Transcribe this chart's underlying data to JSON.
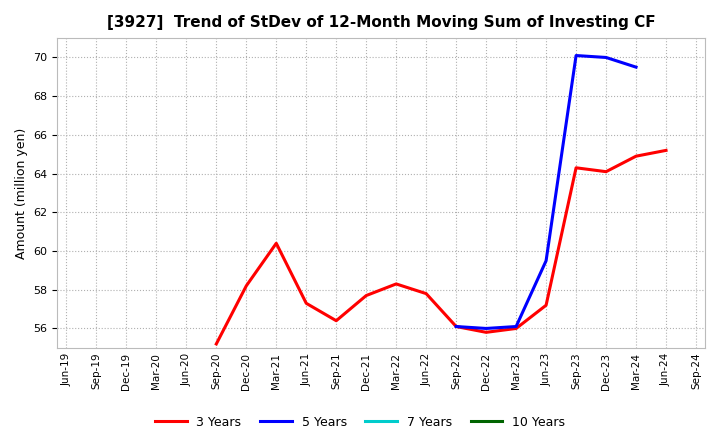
{
  "title": "[3927]  Trend of StDev of 12-Month Moving Sum of Investing CF",
  "ylabel": "Amount (million yen)",
  "background_color": "#ffffff",
  "grid_color": "#b0b0b0",
  "ylim": [
    55.0,
    71.0
  ],
  "yticks": [
    56,
    58,
    60,
    62,
    64,
    66,
    68,
    70
  ],
  "xtick_labels": [
    "Jun-19",
    "Sep-19",
    "Dec-19",
    "Mar-20",
    "Jun-20",
    "Sep-20",
    "Dec-20",
    "Mar-21",
    "Jun-21",
    "Sep-21",
    "Dec-21",
    "Mar-22",
    "Jun-22",
    "Sep-22",
    "Dec-22",
    "Mar-23",
    "Jun-23",
    "Sep-23",
    "Dec-23",
    "Mar-24",
    "Jun-24",
    "Sep-24"
  ],
  "series_3y": {
    "color": "#ff0000",
    "linewidth": 2.2,
    "x_indices": [
      5,
      6,
      7,
      8,
      9,
      10,
      11,
      12,
      13,
      14,
      15,
      16,
      17,
      18,
      19,
      20
    ],
    "y": [
      55.2,
      58.2,
      60.4,
      57.3,
      56.4,
      57.7,
      58.3,
      57.8,
      56.1,
      55.8,
      56.0,
      57.2,
      64.3,
      64.1,
      64.9,
      65.2
    ]
  },
  "series_5y": {
    "color": "#0000ff",
    "linewidth": 2.2,
    "x_indices": [
      13,
      14,
      15,
      16,
      17,
      18,
      19
    ],
    "y": [
      56.1,
      56.0,
      56.1,
      59.5,
      70.1,
      70.0,
      69.5
    ]
  },
  "series_7y": {
    "color": "#00cccc",
    "linewidth": 2.2,
    "x_indices": [],
    "y": []
  },
  "series_10y": {
    "color": "#006400",
    "linewidth": 2.2,
    "x_indices": [],
    "y": []
  },
  "legend_labels": [
    "3 Years",
    "5 Years",
    "7 Years",
    "10 Years"
  ],
  "legend_colors": [
    "#ff0000",
    "#0000ff",
    "#00cccc",
    "#006400"
  ]
}
